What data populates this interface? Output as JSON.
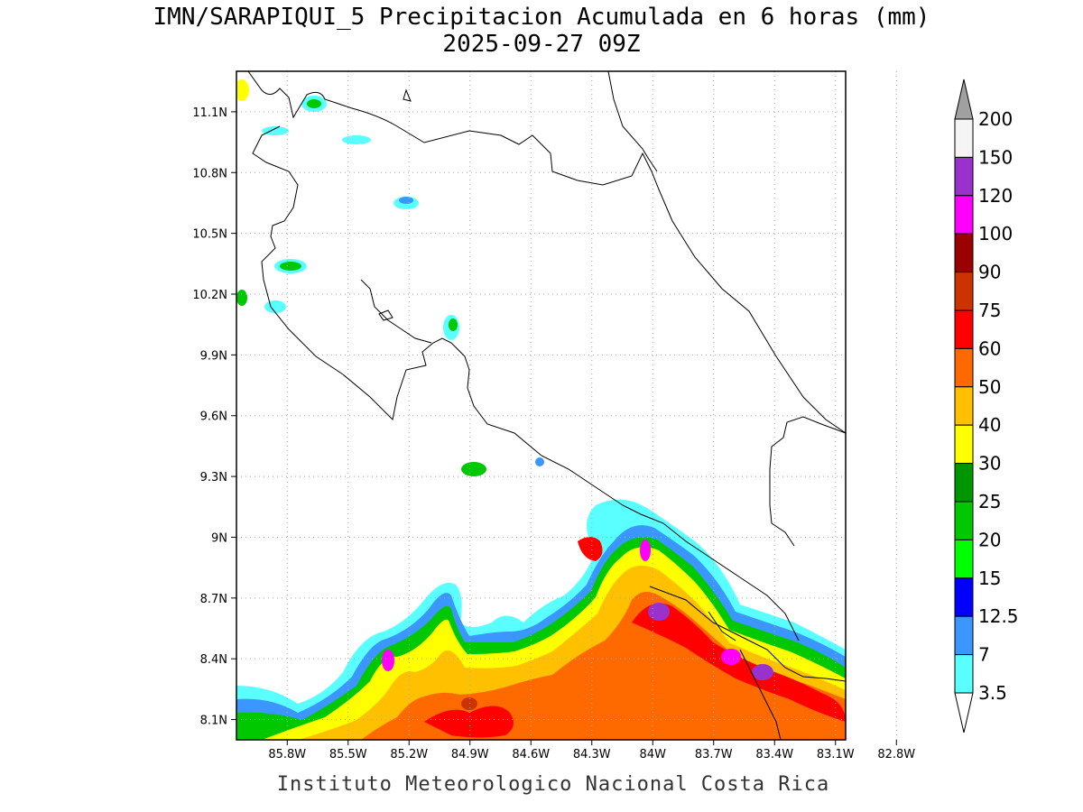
{
  "title": {
    "line1": "IMN/SARAPIQUI_5 Precipitacion Acumulada en 6 horas (mm)",
    "line2": "2025-09-27 09Z"
  },
  "credit": "Instituto Meteorologico Nacional Costa Rica",
  "map": {
    "lon_labels": [
      "85.8W",
      "85.5W",
      "85.2W",
      "84.9W",
      "84.6W",
      "84.3W",
      "84W",
      "83.7W",
      "83.4W",
      "83.1W",
      "82.8W"
    ],
    "lat_labels": [
      "11.1N",
      "10.8N",
      "10.5N",
      "10.2N",
      "9.9N",
      "9.6N",
      "9.3N",
      "9N",
      "8.7N",
      "8.4N",
      "8.1N"
    ],
    "lon_range": [
      -86.05,
      -83.05
    ],
    "lat_range": [
      8.0,
      11.3
    ],
    "grid": true
  },
  "legend": {
    "top_arrow_color": "#a0a0a0",
    "bottom_arrow_color": "#ffffff",
    "labels": [
      "200",
      "150",
      "120",
      "100",
      "90",
      "75",
      "60",
      "50",
      "40",
      "30",
      "25",
      "20",
      "15",
      "12.5",
      "7",
      "3.5"
    ],
    "colors": [
      "#f5f5f5",
      "#9932cc",
      "#ff00ff",
      "#9b0000",
      "#cc3300",
      "#ff0000",
      "#ff6a00",
      "#ffc000",
      "#ffff00",
      "#009600",
      "#00c800",
      "#00ff00",
      "#0000ff",
      "#3c96ff",
      "#5affff"
    ]
  }
}
